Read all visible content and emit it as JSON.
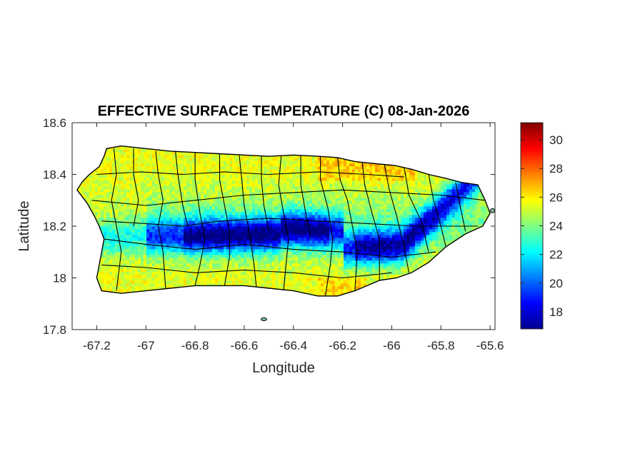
{
  "chart_data": {
    "type": "heatmap",
    "title": "EFFECTIVE SURFACE TEMPERATURE (C) 08-Jan-2026",
    "xlabel": "Longitude",
    "ylabel": "Latitude",
    "xlim": [
      -67.3,
      -65.58
    ],
    "ylim": [
      17.8,
      18.6
    ],
    "x_ticks": [
      -67.2,
      -67,
      -66.8,
      -66.6,
      -66.4,
      -66.2,
      -66,
      -65.8,
      -65.6
    ],
    "y_ticks": [
      17.8,
      18,
      18.2,
      18.4,
      18.6
    ],
    "x_tick_labels": [
      "-67.2",
      "-67",
      "-66.8",
      "-66.6",
      "-66.4",
      "-66.2",
      "-66",
      "-65.8",
      "-65.6"
    ],
    "y_tick_labels": [
      "17.8",
      "18",
      "18.2",
      "18.4",
      "18.6"
    ],
    "colorbar": {
      "colormap": "jet",
      "range": [
        16.8,
        31.2
      ],
      "ticks": [
        18,
        20,
        22,
        24,
        26,
        28,
        30
      ],
      "tick_labels": [
        "18",
        "20",
        "22",
        "24",
        "26",
        "28",
        "30"
      ]
    },
    "region": "Puerto Rico municipalities",
    "cold_ridge_min": 17,
    "coast_typical": 25.5,
    "colors": {
      "border": "#000000",
      "axes": "#262626"
    }
  }
}
